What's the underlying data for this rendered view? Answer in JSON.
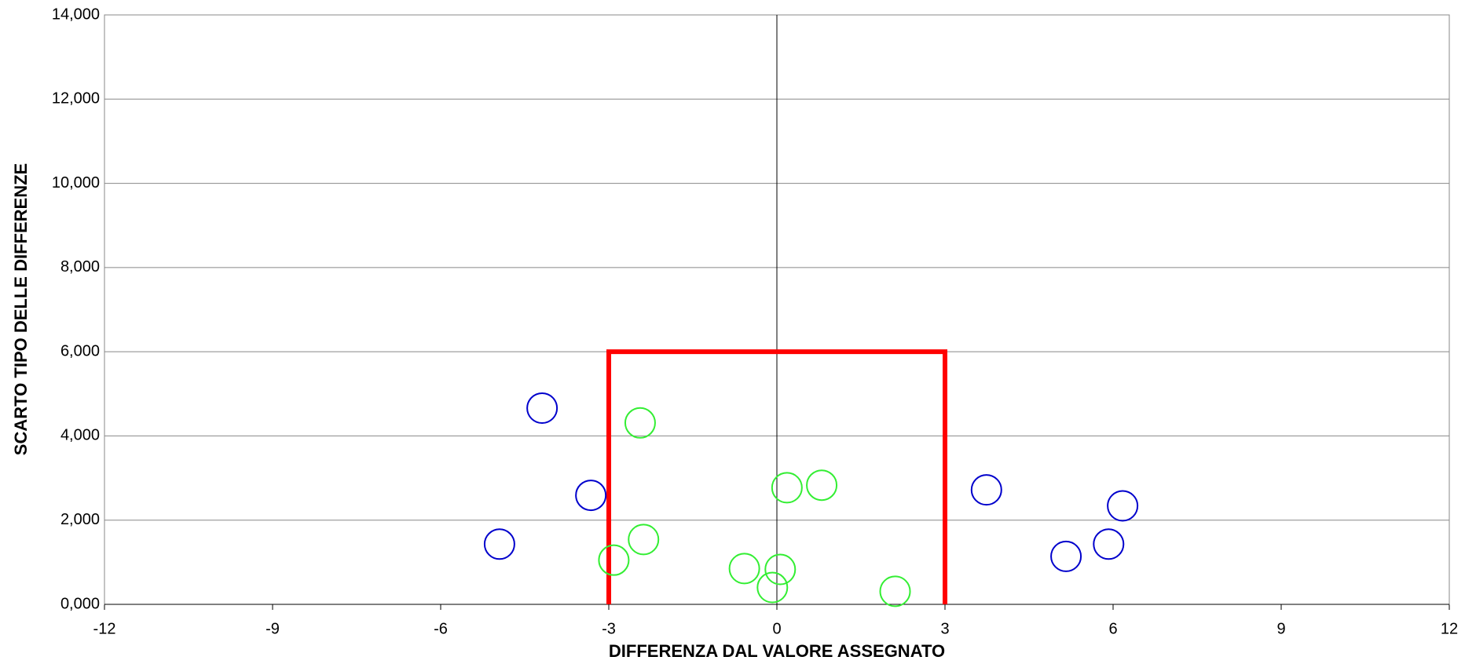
{
  "chart_data": {
    "type": "scatter",
    "x_label": "DIFFERENZA DAL VALORE ASSEGNATO",
    "y_label": "SCARTO TIPO DELLE DIFFERENZE",
    "xlim": [
      -12,
      12
    ],
    "xticks": [
      -12,
      -9,
      -6,
      -3,
      0,
      3,
      6,
      9,
      12
    ],
    "ylim": [
      0,
      14
    ],
    "yticks": [
      {
        "value": 0,
        "label": "0,000"
      },
      {
        "value": 2,
        "label": "2,000"
      },
      {
        "value": 4,
        "label": "4,000"
      },
      {
        "value": 6,
        "label": "6,000"
      },
      {
        "value": 8,
        "label": "8,000"
      },
      {
        "value": 10,
        "label": "10,000"
      },
      {
        "value": 12,
        "label": "12,000"
      },
      {
        "value": 14,
        "label": "14,000"
      }
    ],
    "grid": true,
    "series": [
      {
        "color": "#0000cc",
        "x": [
          -4.19,
          -3.32,
          -4.95,
          3.74,
          5.16,
          5.92,
          6.17
        ],
        "values": [
          4.66,
          2.59,
          1.43,
          2.72,
          1.14,
          1.43,
          2.34
        ]
      },
      {
        "color": "#33ee33",
        "x": [
          -2.44,
          -2.38,
          -2.91,
          -0.58,
          -0.08,
          0.06,
          0.18,
          0.8,
          2.11
        ],
        "values": [
          4.31,
          1.54,
          1.05,
          0.85,
          0.4,
          0.83,
          2.77,
          2.83,
          0.31
        ]
      }
    ],
    "reference_box": {
      "x": [
        -3,
        3
      ],
      "y": [
        0,
        6
      ],
      "color": "#ff0000"
    }
  }
}
